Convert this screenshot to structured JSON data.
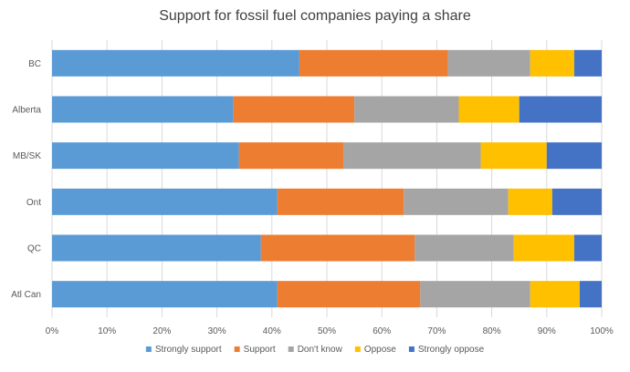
{
  "chart_data": {
    "type": "bar",
    "orientation": "horizontal",
    "stacked": true,
    "percent_stacked": true,
    "title": "Support for fossil fuel companies paying a share",
    "categories": [
      "BC",
      "Alberta",
      "MB/SK",
      "Ont",
      "QC",
      "Atl Can"
    ],
    "series": [
      {
        "name": "Strongly support",
        "color": "#5B9BD5",
        "values": [
          45,
          33,
          34,
          41,
          38,
          41
        ]
      },
      {
        "name": "Support",
        "color": "#ED7D31",
        "values": [
          27,
          22,
          19,
          23,
          28,
          26
        ]
      },
      {
        "name": "Don't know",
        "color": "#A5A5A5",
        "values": [
          15,
          19,
          25,
          19,
          18,
          20
        ]
      },
      {
        "name": "Oppose",
        "color": "#FFC000",
        "values": [
          8,
          11,
          12,
          8,
          11,
          9
        ]
      },
      {
        "name": "Strongly oppose",
        "color": "#4472C4",
        "values": [
          5,
          15,
          10,
          9,
          5,
          4
        ]
      }
    ],
    "xlim": [
      0,
      100
    ],
    "xticks": [
      "0%",
      "10%",
      "20%",
      "30%",
      "40%",
      "50%",
      "60%",
      "70%",
      "80%",
      "90%",
      "100%"
    ],
    "grid": true,
    "legend": "bottom"
  }
}
